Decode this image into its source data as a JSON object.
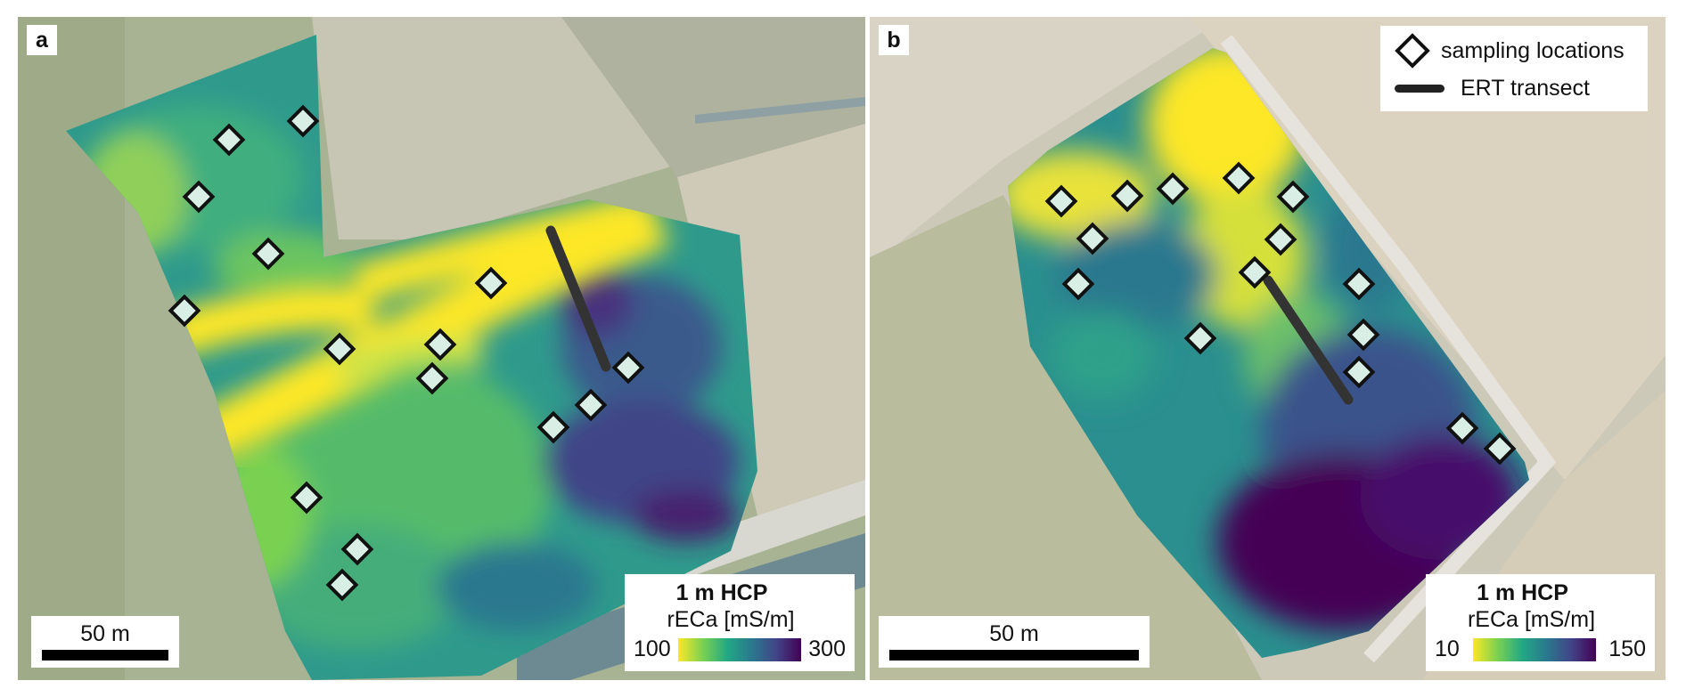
{
  "panels": [
    {
      "label": "a",
      "scalebar_label": "50 m",
      "colorbar": {
        "title": "1 m HCP",
        "unit": "rECa [mS/m]",
        "min": "100",
        "max": "300"
      }
    },
    {
      "label": "b",
      "scalebar_label": "50 m",
      "colorbar": {
        "title": "1 m HCP",
        "unit": "rECa [mS/m]",
        "min": "10",
        "max": "150"
      },
      "legend": [
        {
          "label": "sampling locations",
          "symbol": "diamond"
        },
        {
          "label": "ERT transect",
          "symbol": "line"
        }
      ]
    }
  ],
  "colors": {
    "viridis": [
      "#fde725",
      "#7ad151",
      "#22a884",
      "#2a788e",
      "#414487",
      "#440154"
    ],
    "marker_fill": "#d9efe6",
    "marker_edge": "#111111",
    "transect": "#333333"
  }
}
